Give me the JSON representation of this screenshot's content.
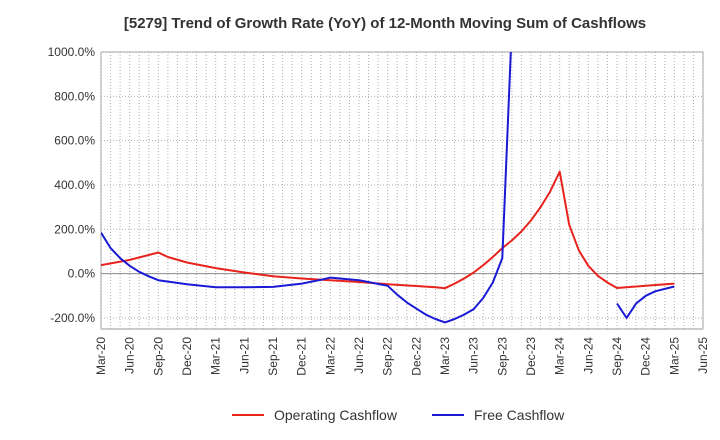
{
  "chart_data": {
    "type": "line",
    "title": "[5279]  Trend of Growth Rate (YoY) of 12-Month Moving Sum of Cashflows",
    "xlabel": "",
    "ylabel": "",
    "ylim": [
      -250,
      1000
    ],
    "yticks": [
      -200,
      0,
      200,
      400,
      600,
      800,
      1000
    ],
    "ytick_labels": [
      "-200.0%",
      "0.0%",
      "200.0%",
      "400.0%",
      "600.0%",
      "800.0%",
      "1000.0%"
    ],
    "x_start": "Mar-20",
    "x_end": "Jun-25",
    "xtick_labels": [
      "Mar-20",
      "Jun-20",
      "Sep-20",
      "Dec-20",
      "Mar-21",
      "Jun-21",
      "Sep-21",
      "Dec-21",
      "Mar-22",
      "Jun-22",
      "Sep-22",
      "Dec-22",
      "Mar-23",
      "Jun-23",
      "Sep-23",
      "Dec-23",
      "Mar-24",
      "Jun-24",
      "Sep-24",
      "Dec-24",
      "Mar-25",
      "Jun-25"
    ],
    "grid": true,
    "legend_position": "bottom",
    "series": [
      {
        "name": "Operating Cashflow",
        "color": "#e8231e",
        "points": [
          [
            "Mar-20",
            38
          ],
          [
            "Jun-20",
            62
          ],
          [
            "Sep-20",
            95
          ],
          [
            "Oct-20",
            75
          ],
          [
            "Dec-20",
            50
          ],
          [
            "Mar-21",
            25
          ],
          [
            "Jun-21",
            5
          ],
          [
            "Sep-21",
            -12
          ],
          [
            "Dec-21",
            -22
          ],
          [
            "Mar-22",
            -30
          ],
          [
            "Jun-22",
            -38
          ],
          [
            "Sep-22",
            -48
          ],
          [
            "Dec-22",
            -56
          ],
          [
            "Feb-23",
            -62
          ],
          [
            "Mar-23",
            -66
          ],
          [
            "Apr-23",
            -45
          ],
          [
            "May-23",
            -22
          ],
          [
            "Jun-23",
            5
          ],
          [
            "Jul-23",
            38
          ],
          [
            "Aug-23",
            75
          ],
          [
            "Sep-23",
            115
          ],
          [
            "Oct-23",
            150
          ],
          [
            "Nov-23",
            190
          ],
          [
            "Dec-23",
            240
          ],
          [
            "Jan-24",
            300
          ],
          [
            "Feb-24",
            370
          ],
          [
            "Mar-24",
            460
          ],
          [
            "Apr-24",
            220
          ],
          [
            "May-24",
            105
          ],
          [
            "Jun-24",
            35
          ],
          [
            "Jul-24",
            -10
          ],
          [
            "Aug-24",
            -40
          ],
          [
            "Sep-24",
            -65
          ],
          [
            "Dec-24",
            -55
          ],
          [
            "Mar-25",
            -45
          ]
        ]
      },
      {
        "name": "Free Cashflow",
        "color": "#1a1ad6",
        "points": [
          [
            "Mar-20",
            185
          ],
          [
            "Apr-20",
            115
          ],
          [
            "May-20",
            70
          ],
          [
            "Jun-20",
            35
          ],
          [
            "Jul-20",
            8
          ],
          [
            "Aug-20",
            -12
          ],
          [
            "Sep-20",
            -30
          ],
          [
            "Dec-20",
            -48
          ],
          [
            "Mar-21",
            -62
          ],
          [
            "Jun-21",
            -62
          ],
          [
            "Sep-21",
            -60
          ],
          [
            "Dec-21",
            -45
          ],
          [
            "Feb-22",
            -28
          ],
          [
            "Mar-22",
            -18
          ],
          [
            "Jun-22",
            -30
          ],
          [
            "Sep-22",
            -55
          ],
          [
            "Oct-22",
            -95
          ],
          [
            "Nov-22",
            -130
          ],
          [
            "Dec-22",
            -158
          ],
          [
            "Jan-23",
            -185
          ],
          [
            "Feb-23",
            -205
          ],
          [
            "Mar-23",
            -220
          ],
          [
            "Apr-23",
            -205
          ],
          [
            "May-23",
            -185
          ],
          [
            "Jun-23",
            -160
          ],
          [
            "Jul-23",
            -110
          ],
          [
            "Aug-23",
            -40
          ],
          [
            "Sep-23",
            70
          ],
          [
            "Oct-23",
            1120
          ],
          null,
          [
            "Sep-24",
            -135
          ],
          [
            "Oct-24",
            -200
          ],
          [
            "Nov-24",
            -135
          ],
          [
            "Dec-24",
            -100
          ],
          [
            "Jan-25",
            -80
          ],
          [
            "Mar-25",
            -58
          ]
        ]
      }
    ]
  }
}
